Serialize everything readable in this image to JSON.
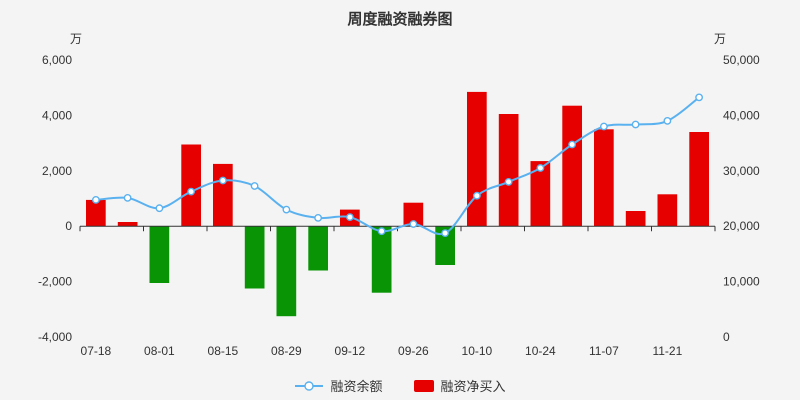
{
  "title": "周度融资融券图",
  "axis_units": {
    "left": "万",
    "right": "万"
  },
  "legend": {
    "items": [
      {
        "label": "融资余额",
        "series": "line"
      },
      {
        "label": "融资净买入",
        "series": "bar"
      }
    ]
  },
  "colors": {
    "background": "#f4f4f4",
    "title_text": "#333333",
    "axis_text": "#333333",
    "axis_line": "#333333",
    "line_series": "#5ab1ef",
    "marker_fill": "#ffffff",
    "bar_positive": "#e60000",
    "bar_negative": "#089404"
  },
  "chart_data": {
    "type": "bar+line dual-axis",
    "title": "周度融资融券图",
    "n_points": 20,
    "x_axis": {
      "tick_labels": [
        "07-18",
        "08-01",
        "08-15",
        "08-29",
        "09-12",
        "09-26",
        "10-10",
        "10-24",
        "11-07",
        "11-21"
      ],
      "tick_indices": [
        0,
        2,
        4,
        6,
        8,
        10,
        12,
        14,
        16,
        18
      ]
    },
    "left_axis": {
      "unit": "万",
      "min": -4000,
      "max": 6000,
      "tick_values": [
        6000,
        4000,
        2000,
        0,
        -2000,
        -4000
      ],
      "tick_labels": [
        "6,000",
        "4,000",
        "2,000",
        "0",
        "-2,000",
        "-4,000"
      ]
    },
    "right_axis": {
      "unit": "万",
      "min": 0,
      "max": 50000,
      "tick_values": [
        50000,
        40000,
        30000,
        20000,
        10000,
        0
      ],
      "tick_labels": [
        "50,000",
        "40,000",
        "30,000",
        "20,000",
        "10,000",
        "0"
      ]
    },
    "series": [
      {
        "name": "融资净买入",
        "type": "bar",
        "axis": "left",
        "values": [
          950,
          150,
          -2050,
          2950,
          2250,
          -2250,
          -3250,
          -1600,
          600,
          -2400,
          850,
          -1400,
          4850,
          4050,
          2350,
          4350,
          3500,
          550,
          1150,
          3400
        ]
      },
      {
        "name": "融资余额",
        "type": "line",
        "axis": "right",
        "values": [
          24750,
          25100,
          23250,
          26250,
          28250,
          27250,
          23000,
          21500,
          21650,
          19100,
          20400,
          18750,
          25500,
          28000,
          30500,
          34750,
          38000,
          38350,
          39000,
          43250
        ]
      }
    ],
    "legend_position": "bottom",
    "grid": false
  }
}
